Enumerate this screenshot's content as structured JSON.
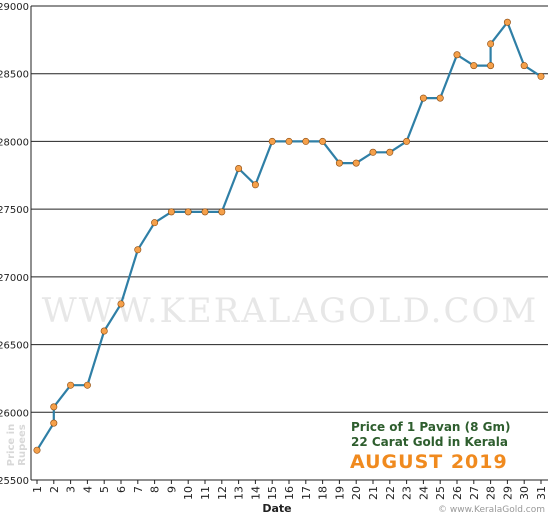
{
  "chart_data": {
    "type": "line",
    "xlabel": "Date",
    "ylabel_line1": "Price in",
    "ylabel_line2": "Rupees",
    "categories": [
      "1",
      "2",
      "3",
      "4",
      "5",
      "6",
      "7",
      "8",
      "9",
      "10",
      "11",
      "12",
      "13",
      "14",
      "15",
      "16",
      "17",
      "18",
      "19",
      "20",
      "21",
      "22",
      "23",
      "24",
      "25",
      "26",
      "27",
      "28",
      "29",
      "30",
      "31"
    ],
    "ylim": [
      25500,
      29000
    ],
    "yticks": [
      25500,
      26000,
      26500,
      27000,
      27500,
      28000,
      28500,
      29000
    ],
    "points": [
      {
        "x": 1,
        "y": 25720
      },
      {
        "x": 2,
        "y": 25920
      },
      {
        "x": 2,
        "y": 26040
      },
      {
        "x": 3,
        "y": 26200
      },
      {
        "x": 4,
        "y": 26200
      },
      {
        "x": 5,
        "y": 26600
      },
      {
        "x": 6,
        "y": 26800
      },
      {
        "x": 7,
        "y": 27200
      },
      {
        "x": 8,
        "y": 27400
      },
      {
        "x": 9,
        "y": 27480
      },
      {
        "x": 10,
        "y": 27480
      },
      {
        "x": 11,
        "y": 27480
      },
      {
        "x": 12,
        "y": 27480
      },
      {
        "x": 13,
        "y": 27800
      },
      {
        "x": 14,
        "y": 27680
      },
      {
        "x": 15,
        "y": 28000
      },
      {
        "x": 16,
        "y": 28000
      },
      {
        "x": 17,
        "y": 28000
      },
      {
        "x": 18,
        "y": 28000
      },
      {
        "x": 19,
        "y": 27840
      },
      {
        "x": 20,
        "y": 27840
      },
      {
        "x": 21,
        "y": 27920
      },
      {
        "x": 22,
        "y": 27920
      },
      {
        "x": 23,
        "y": 28000
      },
      {
        "x": 24,
        "y": 28320
      },
      {
        "x": 25,
        "y": 28320
      },
      {
        "x": 26,
        "y": 28640
      },
      {
        "x": 27,
        "y": 28560
      },
      {
        "x": 28,
        "y": 28560
      },
      {
        "x": 28,
        "y": 28720
      },
      {
        "x": 29,
        "y": 28880
      },
      {
        "x": 30,
        "y": 28560
      },
      {
        "x": 31,
        "y": 28480
      }
    ],
    "grid": "horizontal",
    "line_color": "#2f7fa6",
    "marker_color": "#f5a04a",
    "legend_placement": "bottom-right"
  },
  "legend": {
    "line1": "Price of 1 Pavan (8 Gm)",
    "line2": "22 Carat Gold in Kerala",
    "line3": "AUGUST 2019"
  },
  "watermark": "WWW.KERALAGOLD.COM",
  "copyright": "© www.KeralaGold.com"
}
